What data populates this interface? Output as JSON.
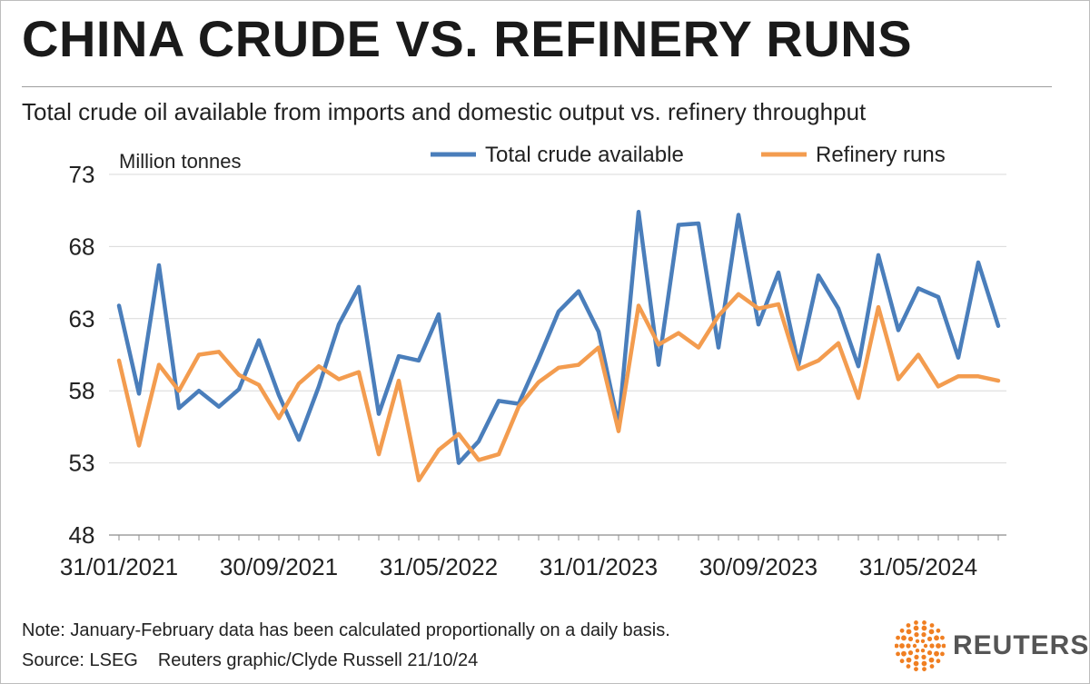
{
  "header": {
    "title": "CHINA CRUDE VS. REFINERY RUNS",
    "subtitle": "Total crude oil available from imports and domestic output vs. refinery throughput"
  },
  "footer": {
    "note": "Note: January-February data has been calculated proportionally on a daily basis.",
    "source": "Source: LSEG",
    "credit": "Reuters graphic/Clyde Russell 21/10/24",
    "brand": "REUTERS"
  },
  "colors": {
    "crude": "#4a7ebb",
    "runs": "#f39c4f",
    "grid": "#d9d9d9",
    "brand_orange": "#f07f22"
  },
  "chart_data": {
    "type": "line",
    "unit_label": "Million tonnes",
    "ylim": [
      48,
      73
    ],
    "yticks": [
      48,
      53,
      58,
      63,
      68,
      73
    ],
    "x_tick_labels": [
      "31/01/2021",
      "30/09/2021",
      "31/05/2022",
      "31/01/2023",
      "30/09/2023",
      "31/05/2024"
    ],
    "x_tick_indices": [
      0,
      8,
      16,
      24,
      32,
      40
    ],
    "series": [
      {
        "name": "Total crude available",
        "color": "#4a7ebb",
        "values": [
          63.9,
          57.8,
          66.7,
          56.8,
          58.0,
          56.9,
          58.1,
          61.5,
          57.7,
          54.6,
          58.3,
          62.6,
          65.2,
          56.4,
          60.4,
          60.1,
          63.3,
          53.0,
          54.5,
          57.3,
          57.1,
          60.2,
          63.5,
          64.9,
          62.1,
          55.6,
          70.4,
          59.8,
          69.5,
          69.6,
          61.0,
          70.2,
          62.6,
          66.2,
          59.8,
          66.0,
          63.7,
          59.7,
          67.4,
          62.2,
          65.1,
          64.5,
          60.3,
          66.9,
          62.5
        ]
      },
      {
        "name": "Refinery runs",
        "color": "#f39c4f",
        "values": [
          60.1,
          54.2,
          59.8,
          58.0,
          60.5,
          60.7,
          59.1,
          58.4,
          56.1,
          58.5,
          59.7,
          58.8,
          59.3,
          53.6,
          58.7,
          51.8,
          53.9,
          55.0,
          53.2,
          53.6,
          56.9,
          58.6,
          59.6,
          59.8,
          61.0,
          55.2,
          63.9,
          61.2,
          62.0,
          61.0,
          63.2,
          64.7,
          63.7,
          64.0,
          59.5,
          60.1,
          61.3,
          57.5,
          63.8,
          58.8,
          60.5,
          58.3,
          59.0,
          59.0,
          58.7
        ]
      }
    ]
  }
}
